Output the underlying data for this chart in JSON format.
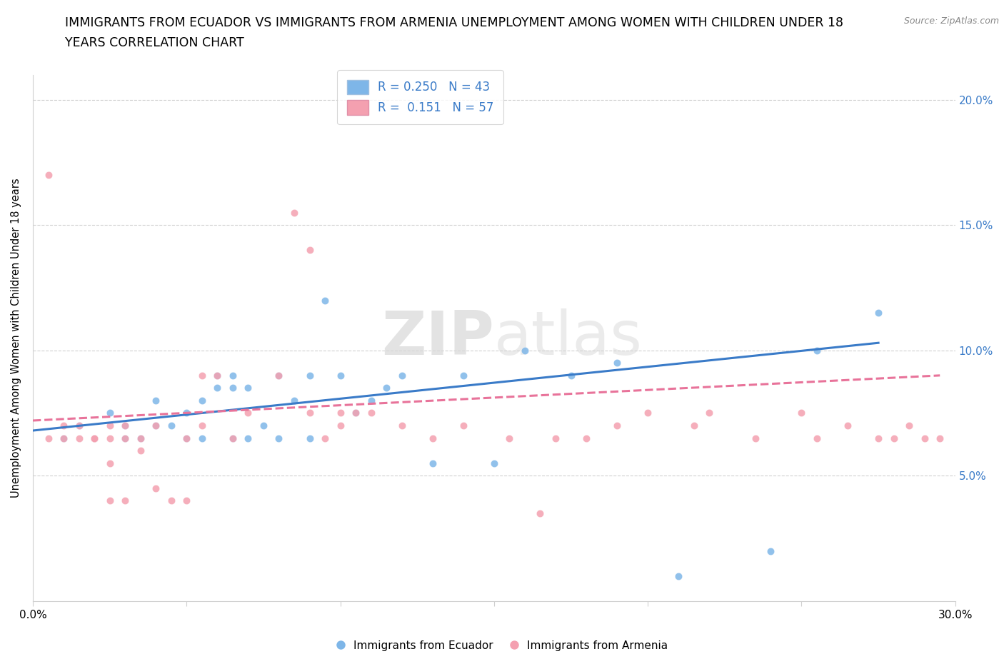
{
  "title_line1": "IMMIGRANTS FROM ECUADOR VS IMMIGRANTS FROM ARMENIA UNEMPLOYMENT AMONG WOMEN WITH CHILDREN UNDER 18",
  "title_line2": "YEARS CORRELATION CHART",
  "source": "Source: ZipAtlas.com",
  "ylabel": "Unemployment Among Women with Children Under 18 years",
  "xlim": [
    0.0,
    0.3
  ],
  "ylim": [
    0.0,
    0.21
  ],
  "x_ticks": [
    0.0,
    0.05,
    0.1,
    0.15,
    0.2,
    0.25,
    0.3
  ],
  "y_ticks": [
    0.0,
    0.05,
    0.1,
    0.15,
    0.2
  ],
  "y_tick_labels_right": [
    "",
    "5.0%",
    "10.0%",
    "15.0%",
    "20.0%"
  ],
  "ecuador_color": "#7EB6E8",
  "armenia_color": "#F4A0B0",
  "ecuador_line_color": "#3A7BC8",
  "armenia_line_color": "#E8739A",
  "ecuador_R": 0.25,
  "ecuador_N": 43,
  "armenia_R": 0.151,
  "armenia_N": 57,
  "watermark_part1": "ZIP",
  "watermark_part2": "atlas",
  "ecuador_scatter_x": [
    0.01,
    0.015,
    0.02,
    0.025,
    0.03,
    0.03,
    0.035,
    0.04,
    0.04,
    0.045,
    0.05,
    0.05,
    0.055,
    0.055,
    0.06,
    0.06,
    0.065,
    0.065,
    0.065,
    0.07,
    0.07,
    0.075,
    0.08,
    0.08,
    0.085,
    0.09,
    0.09,
    0.095,
    0.1,
    0.105,
    0.11,
    0.115,
    0.12,
    0.13,
    0.14,
    0.15,
    0.16,
    0.175,
    0.19,
    0.21,
    0.24,
    0.255,
    0.275
  ],
  "ecuador_scatter_y": [
    0.065,
    0.07,
    0.065,
    0.075,
    0.065,
    0.07,
    0.065,
    0.07,
    0.08,
    0.07,
    0.065,
    0.075,
    0.065,
    0.08,
    0.09,
    0.085,
    0.085,
    0.09,
    0.065,
    0.085,
    0.065,
    0.07,
    0.09,
    0.065,
    0.08,
    0.09,
    0.065,
    0.12,
    0.09,
    0.075,
    0.08,
    0.085,
    0.09,
    0.055,
    0.09,
    0.055,
    0.1,
    0.09,
    0.095,
    0.01,
    0.02,
    0.1,
    0.115
  ],
  "armenia_scatter_x": [
    0.005,
    0.005,
    0.01,
    0.01,
    0.015,
    0.015,
    0.02,
    0.02,
    0.02,
    0.025,
    0.025,
    0.025,
    0.025,
    0.03,
    0.03,
    0.03,
    0.035,
    0.035,
    0.04,
    0.04,
    0.045,
    0.05,
    0.05,
    0.055,
    0.055,
    0.06,
    0.065,
    0.07,
    0.08,
    0.085,
    0.09,
    0.09,
    0.095,
    0.1,
    0.1,
    0.105,
    0.11,
    0.12,
    0.13,
    0.14,
    0.155,
    0.165,
    0.17,
    0.18,
    0.19,
    0.2,
    0.215,
    0.22,
    0.235,
    0.25,
    0.255,
    0.265,
    0.275,
    0.28,
    0.285,
    0.29,
    0.295
  ],
  "armenia_scatter_y": [
    0.065,
    0.17,
    0.07,
    0.065,
    0.07,
    0.065,
    0.065,
    0.065,
    0.065,
    0.065,
    0.055,
    0.04,
    0.07,
    0.065,
    0.07,
    0.04,
    0.065,
    0.06,
    0.07,
    0.045,
    0.04,
    0.04,
    0.065,
    0.09,
    0.07,
    0.09,
    0.065,
    0.075,
    0.09,
    0.155,
    0.14,
    0.075,
    0.065,
    0.075,
    0.07,
    0.075,
    0.075,
    0.07,
    0.065,
    0.07,
    0.065,
    0.035,
    0.065,
    0.065,
    0.07,
    0.075,
    0.07,
    0.075,
    0.065,
    0.075,
    0.065,
    0.07,
    0.065,
    0.065,
    0.07,
    0.065,
    0.065
  ]
}
